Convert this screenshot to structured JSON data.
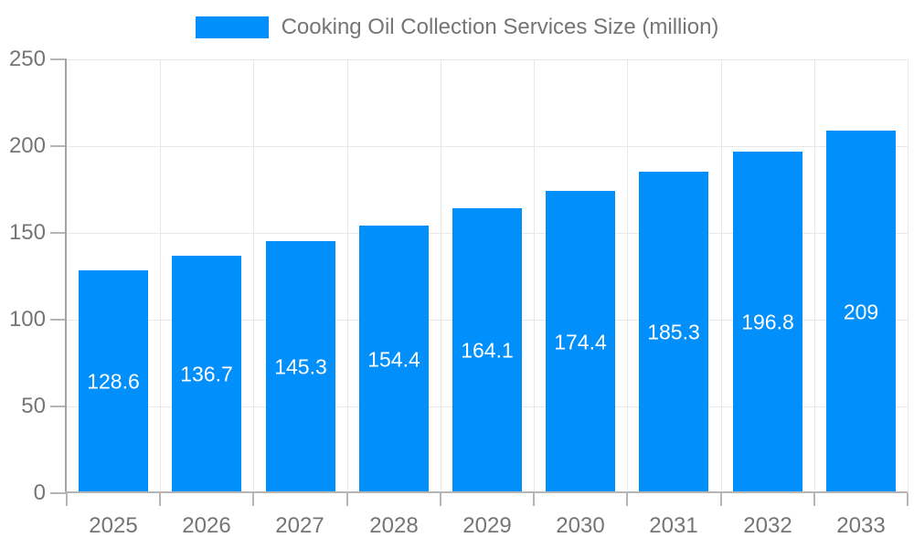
{
  "legend": {
    "label": "Cooking Oil Collection Services Size (million)"
  },
  "chart_data": {
    "type": "bar",
    "title": "Cooking Oil Collection Services Size (million)",
    "categories": [
      "2025",
      "2026",
      "2027",
      "2028",
      "2029",
      "2030",
      "2031",
      "2032",
      "2033"
    ],
    "values": [
      128.6,
      136.7,
      145.3,
      154.4,
      164.1,
      174.4,
      185.3,
      196.8,
      209
    ],
    "value_labels": [
      "128.6",
      "136.7",
      "145.3",
      "154.4",
      "164.1",
      "174.4",
      "185.3",
      "196.8",
      "209"
    ],
    "xlabel": "",
    "ylabel": "",
    "ylim": [
      0,
      250
    ],
    "yticks": [
      0,
      50,
      100,
      150,
      200,
      250
    ],
    "grid": true,
    "legend_position": "top",
    "colors": {
      "bar": "#008FFB",
      "grid": "#e8e8e8",
      "y_axis": "#a3a3a3",
      "x_axis": "#b5b5b5",
      "tick": "#b5b5b5",
      "axis_text": "#757575",
      "value_text": "#ffffff",
      "background": "#ffffff"
    }
  }
}
